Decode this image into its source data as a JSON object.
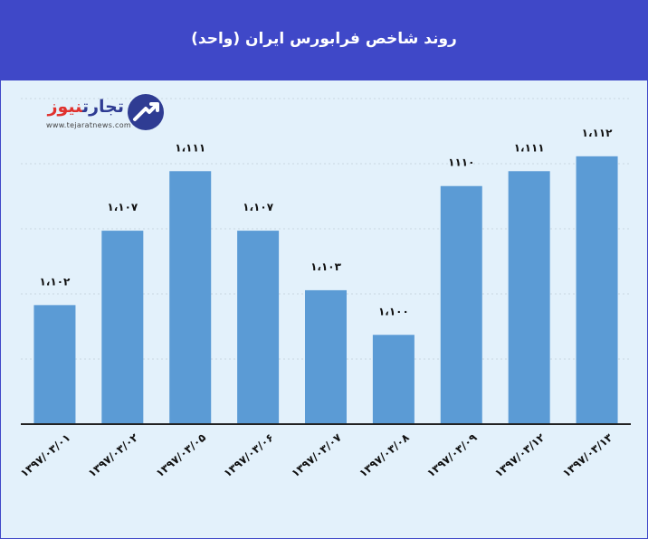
{
  "header": {
    "title": "روند شاخص فرابورس ایران (واحد)",
    "background": "#3f48c8"
  },
  "logo": {
    "name_part1": "تجارت",
    "name_part2": "نیوز",
    "url": "www.tejaratnews.com",
    "icon": "tejarat-news-logo-icon"
  },
  "colors": {
    "bar": "#5b9bd5",
    "plot_background": "#e3f1fb",
    "header": "#3f48c8"
  },
  "chart_data": {
    "type": "bar",
    "title": "روند شاخص فرابورس ایران (واحد)",
    "categories": [
      "۱۳۹۷/۰۳/۰۱",
      "۱۳۹۷/۰۳/۰۲",
      "۱۳۹۷/۰۳/۰۵",
      "۱۳۹۷/۰۳/۰۶",
      "۱۳۹۷/۰۳/۰۷",
      "۱۳۹۷/۰۳/۰۸",
      "۱۳۹۷/۰۳/۰۹",
      "۱۳۹۷/۰۳/۱۲",
      "۱۳۹۷/۰۳/۱۳"
    ],
    "values": [
      1102,
      1107,
      1111,
      1107,
      1103,
      1100,
      1110,
      1111,
      1112
    ],
    "value_labels": [
      "۱،۱۰۲",
      "۱،۱۰۷",
      "۱،۱۱۱",
      "۱،۱۰۷",
      "۱،۱۰۳",
      "۱،۱۰۰",
      "۱۱۱۰",
      "۱،۱۱۱",
      "۱،۱۱۲"
    ],
    "ylim": [
      1094,
      1116
    ],
    "grid": true,
    "legend": "none"
  }
}
